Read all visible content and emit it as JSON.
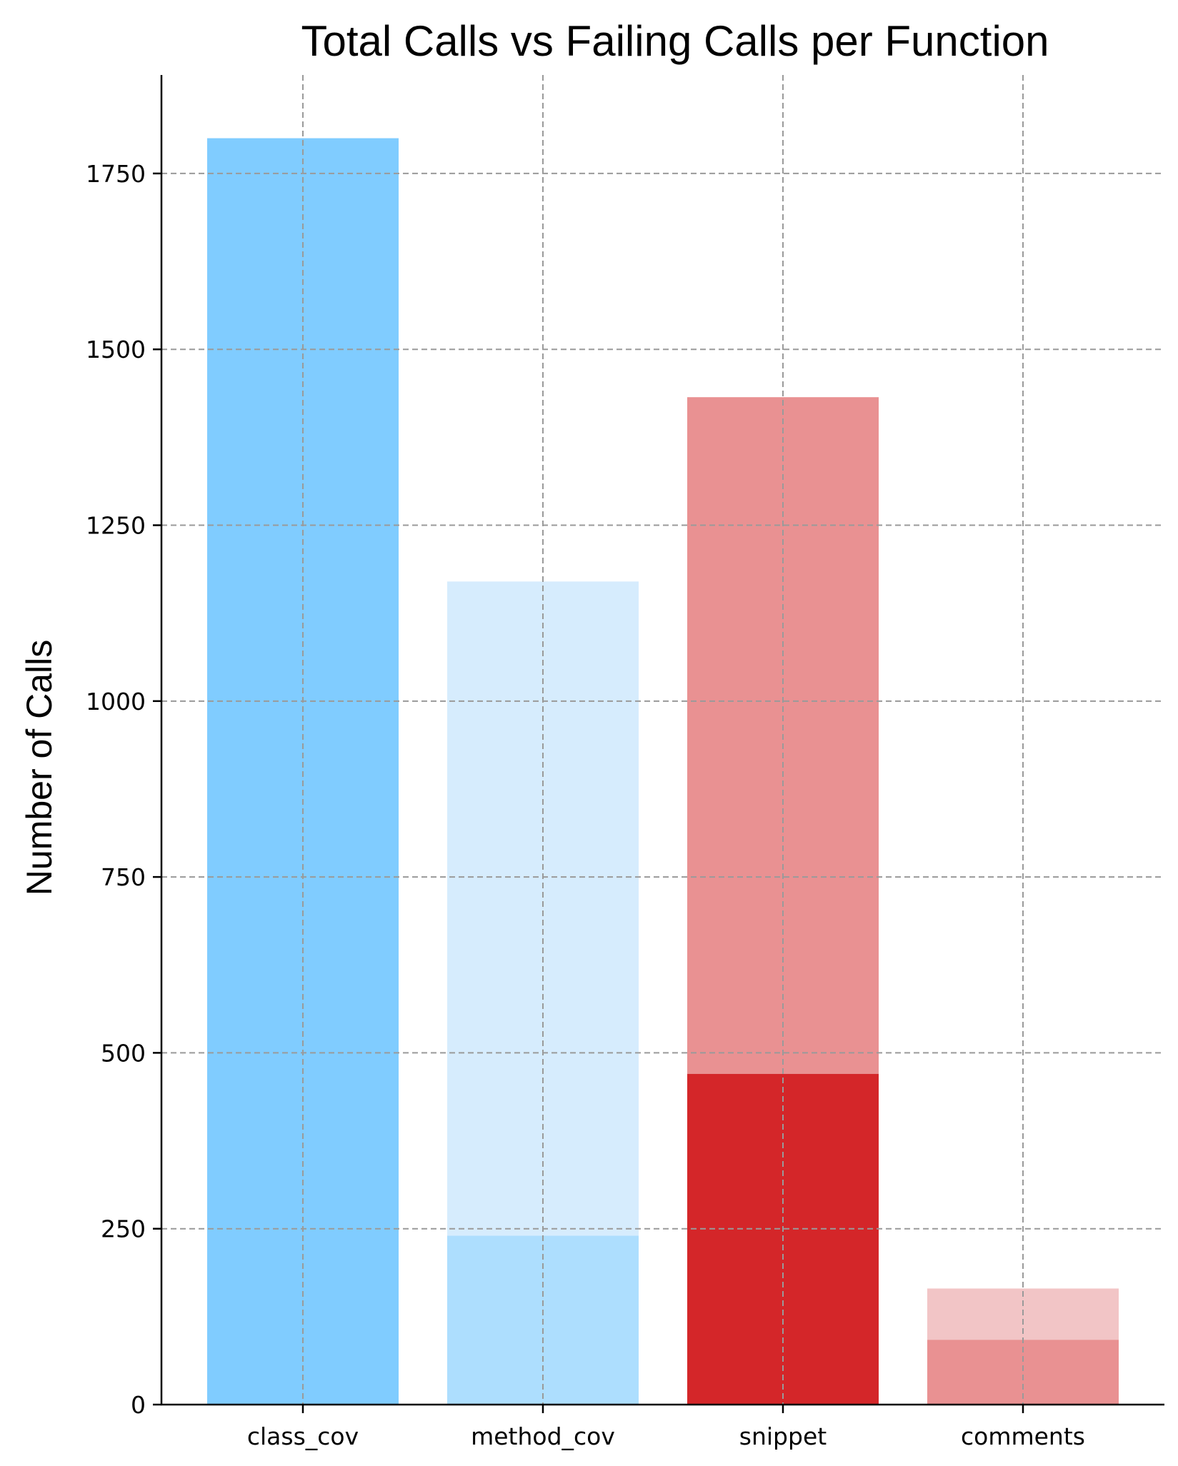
{
  "chart_data": {
    "type": "bar",
    "title": "Total Calls vs Failing Calls per Function",
    "xlabel": "",
    "ylabel": "Number of Calls",
    "categories": [
      "class_cov",
      "method_cov",
      "snippet",
      "comments"
    ],
    "series": [
      {
        "values": [
          1800,
          1170,
          1432,
          165
        ],
        "colors": [
          "#80ccff",
          "#d6ecfd",
          "#e99192",
          "#f2c5c6"
        ]
      },
      {
        "values": [
          1800,
          240,
          470,
          92
        ],
        "colors": [
          "#80ccff",
          "#addefe",
          "#d42629",
          "#e99192"
        ]
      }
    ],
    "ylim": [
      0,
      1890
    ],
    "yticks": [
      0,
      250,
      500,
      750,
      1000,
      1250,
      1500,
      1750
    ],
    "grid": true,
    "legend": "none"
  }
}
